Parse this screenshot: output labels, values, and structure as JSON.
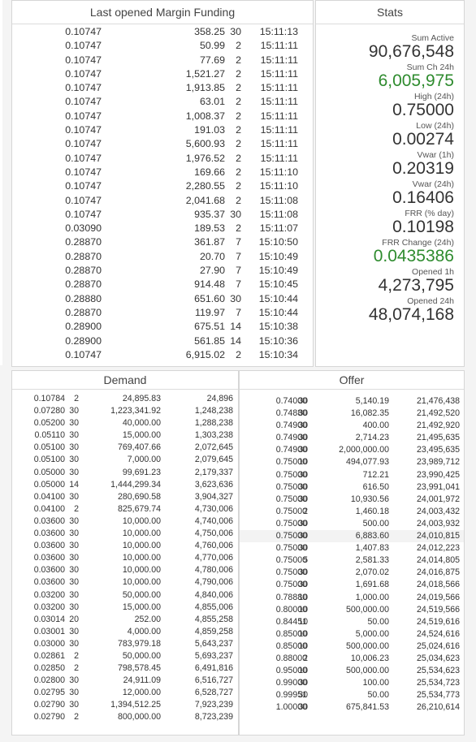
{
  "funding": {
    "title": "Last opened Margin Funding",
    "rows": [
      [
        "0.10747",
        "358.25",
        "30",
        "15:11:13"
      ],
      [
        "0.10747",
        "50.99",
        "2",
        "15:11:11"
      ],
      [
        "0.10747",
        "77.69",
        "2",
        "15:11:11"
      ],
      [
        "0.10747",
        "1,521.27",
        "2",
        "15:11:11"
      ],
      [
        "0.10747",
        "1,913.85",
        "2",
        "15:11:11"
      ],
      [
        "0.10747",
        "63.01",
        "2",
        "15:11:11"
      ],
      [
        "0.10747",
        "1,008.37",
        "2",
        "15:11:11"
      ],
      [
        "0.10747",
        "191.03",
        "2",
        "15:11:11"
      ],
      [
        "0.10747",
        "5,600.93",
        "2",
        "15:11:11"
      ],
      [
        "0.10747",
        "1,976.52",
        "2",
        "15:11:11"
      ],
      [
        "0.10747",
        "169.66",
        "2",
        "15:11:10"
      ],
      [
        "0.10747",
        "2,280.55",
        "2",
        "15:11:10"
      ],
      [
        "0.10747",
        "2,041.68",
        "2",
        "15:11:08"
      ],
      [
        "0.10747",
        "935.37",
        "30",
        "15:11:08"
      ],
      [
        "0.03090",
        "189.53",
        "2",
        "15:11:07"
      ],
      [
        "0.28870",
        "361.87",
        "7",
        "15:10:50"
      ],
      [
        "0.28870",
        "20.70",
        "7",
        "15:10:49"
      ],
      [
        "0.28870",
        "27.90",
        "7",
        "15:10:49"
      ],
      [
        "0.28870",
        "914.48",
        "7",
        "15:10:45"
      ],
      [
        "0.28880",
        "651.60",
        "30",
        "15:10:44"
      ],
      [
        "0.28870",
        "119.97",
        "7",
        "15:10:44"
      ],
      [
        "0.28900",
        "675.51",
        "14",
        "15:10:38"
      ],
      [
        "0.28900",
        "561.85",
        "14",
        "15:10:36"
      ],
      [
        "0.10747",
        "6,915.02",
        "2",
        "15:10:34"
      ]
    ]
  },
  "stats": {
    "title": "Stats",
    "items": [
      {
        "label": "Sum Active",
        "value": "90,676,548",
        "color": "#333333"
      },
      {
        "label": "Sum Ch 24h",
        "value": "6,005,975",
        "color": "#2e8b2e"
      },
      {
        "label": "High (24h)",
        "value": "0.75000",
        "color": "#333333"
      },
      {
        "label": "Low (24h)",
        "value": "0.00274",
        "color": "#333333"
      },
      {
        "label": "Vwar (1h)",
        "value": "0.20319",
        "color": "#333333"
      },
      {
        "label": "Vwar (24h)",
        "value": "0.16406",
        "color": "#333333"
      },
      {
        "label": "FRR (% day)",
        "value": "0.10198",
        "color": "#333333"
      },
      {
        "label": "FRR Change (24h)",
        "value": "0.0435386",
        "color": "#2e8b2e"
      },
      {
        "label": "Opened 1h",
        "value": "4,273,795",
        "color": "#333333"
      },
      {
        "label": "Opened 24h",
        "value": "48,074,168",
        "color": "#333333"
      }
    ]
  },
  "demand": {
    "title": "Demand",
    "rows": [
      [
        "0.10784",
        "2",
        "24,895.83",
        "24,896"
      ],
      [
        "0.07280",
        "30",
        "1,223,341.92",
        "1,248,238"
      ],
      [
        "0.05200",
        "30",
        "40,000.00",
        "1,288,238"
      ],
      [
        "0.05110",
        "30",
        "15,000.00",
        "1,303,238"
      ],
      [
        "0.05100",
        "30",
        "769,407.66",
        "2,072,645"
      ],
      [
        "0.05100",
        "30",
        "7,000.00",
        "2,079,645"
      ],
      [
        "0.05000",
        "30",
        "99,691.23",
        "2,179,337"
      ],
      [
        "0.05000",
        "14",
        "1,444,299.34",
        "3,623,636"
      ],
      [
        "0.04100",
        "30",
        "280,690.58",
        "3,904,327"
      ],
      [
        "0.04100",
        "2",
        "825,679.74",
        "4,730,006"
      ],
      [
        "0.03600",
        "30",
        "10,000.00",
        "4,740,006"
      ],
      [
        "0.03600",
        "30",
        "10,000.00",
        "4,750,006"
      ],
      [
        "0.03600",
        "30",
        "10,000.00",
        "4,760,006"
      ],
      [
        "0.03600",
        "30",
        "10,000.00",
        "4,770,006"
      ],
      [
        "0.03600",
        "30",
        "10,000.00",
        "4,780,006"
      ],
      [
        "0.03600",
        "30",
        "10,000.00",
        "4,790,006"
      ],
      [
        "0.03200",
        "30",
        "50,000.00",
        "4,840,006"
      ],
      [
        "0.03200",
        "30",
        "15,000.00",
        "4,855,006"
      ],
      [
        "0.03014",
        "20",
        "252.00",
        "4,855,258"
      ],
      [
        "0.03001",
        "30",
        "4,000.00",
        "4,859,258"
      ],
      [
        "0.03000",
        "30",
        "783,979.18",
        "5,643,237"
      ],
      [
        "0.02861",
        "2",
        "50,000.00",
        "5,693,237"
      ],
      [
        "0.02850",
        "2",
        "798,578.45",
        "6,491,816"
      ],
      [
        "0.02800",
        "30",
        "24,911.09",
        "6,516,727"
      ],
      [
        "0.02795",
        "30",
        "12,000.00",
        "6,528,727"
      ],
      [
        "0.02790",
        "30",
        "1,394,512.25",
        "7,923,239"
      ],
      [
        "0.02790",
        "2",
        "800,000.00",
        "8,723,239"
      ]
    ]
  },
  "offer": {
    "title": "Offer",
    "rows": [
      [
        "0.74000",
        "30",
        "5,140.19",
        "21,476,438"
      ],
      [
        "0.74880",
        "30",
        "16,082.35",
        "21,492,520"
      ],
      [
        "0.74900",
        "30",
        "400.00",
        "21,492,920"
      ],
      [
        "0.74900",
        "30",
        "2,714.23",
        "21,495,635"
      ],
      [
        "0.74900",
        "30",
        "2,000,000.00",
        "23,495,635"
      ],
      [
        "0.75000",
        "10",
        "494,077.93",
        "23,989,712"
      ],
      [
        "0.75000",
        "30",
        "712.21",
        "23,990,425"
      ],
      [
        "0.75000",
        "30",
        "616.50",
        "23,991,041"
      ],
      [
        "0.75000",
        "30",
        "10,930.56",
        "24,001,972"
      ],
      [
        "0.75000",
        "2",
        "1,460.18",
        "24,003,432"
      ],
      [
        "0.75000",
        "30",
        "500.00",
        "24,003,932"
      ],
      [
        "0.75000",
        "30",
        "6,883.60",
        "24,010,815"
      ],
      [
        "0.75000",
        "30",
        "1,407.83",
        "24,012,223"
      ],
      [
        "0.75000",
        "5",
        "2,581.33",
        "24,014,805"
      ],
      [
        "0.75000",
        "30",
        "2,070.02",
        "24,016,875"
      ],
      [
        "0.75000",
        "30",
        "1,691.68",
        "24,018,566"
      ],
      [
        "0.78880",
        "10",
        "1,000.00",
        "24,019,566"
      ],
      [
        "0.80000",
        "10",
        "500,000.00",
        "24,519,566"
      ],
      [
        "0.84451",
        "10",
        "50.00",
        "24,519,616"
      ],
      [
        "0.85000",
        "10",
        "5,000.00",
        "24,524,616"
      ],
      [
        "0.85000",
        "10",
        "500,000.00",
        "25,024,616"
      ],
      [
        "0.88000",
        "2",
        "10,006.23",
        "25,034,623"
      ],
      [
        "0.95000",
        "10",
        "500,000.00",
        "25,534,623"
      ],
      [
        "0.99000",
        "30",
        "100.00",
        "25,534,723"
      ],
      [
        "0.99951",
        "30",
        "50.00",
        "25,534,773"
      ],
      [
        "1.00000",
        "30",
        "675,841.53",
        "26,210,614"
      ]
    ]
  }
}
